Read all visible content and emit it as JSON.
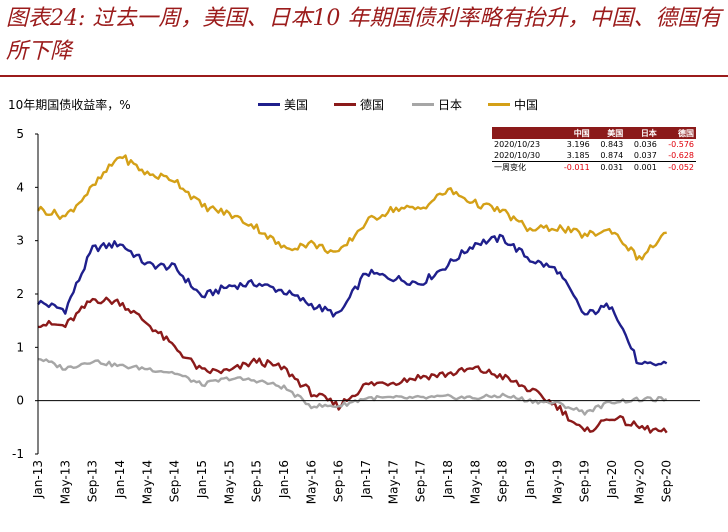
{
  "title": "图表24: 过去一周，美国、日本10 年期国债利率略有抬升，中国、德国有所下降",
  "chart_data": {
    "type": "line",
    "ylabel": "10年期国债收益率，%",
    "ylim": [
      -1,
      5
    ],
    "yticks": [
      -1,
      0,
      1,
      2,
      3,
      4,
      5
    ],
    "x_start": "Jan-13",
    "x_end": "Oct-20",
    "categories": [
      "Jan-13",
      "May-13",
      "Sep-13",
      "Jan-14",
      "May-14",
      "Sep-14",
      "Jan-15",
      "May-15",
      "Sep-15",
      "Jan-16",
      "May-16",
      "Sep-16",
      "Jan-17",
      "May-17",
      "Sep-17",
      "Jan-18",
      "May-18",
      "Sep-18",
      "Jan-19",
      "May-19",
      "Sep-19",
      "Jan-20",
      "May-20",
      "Sep-20"
    ],
    "series": [
      {
        "name": "美国",
        "color": "#1f1f8c",
        "values": [
          1.85,
          1.7,
          2.85,
          2.95,
          2.55,
          2.5,
          1.95,
          2.15,
          2.2,
          2.05,
          1.8,
          1.6,
          2.4,
          2.3,
          2.2,
          2.55,
          2.95,
          3.05,
          2.65,
          2.45,
          1.6,
          1.8,
          0.65,
          0.7
        ]
      },
      {
        "name": "德国",
        "color": "#8b1a1a",
        "values": [
          1.45,
          1.4,
          1.9,
          1.85,
          1.45,
          1.0,
          0.55,
          0.55,
          0.75,
          0.6,
          0.15,
          -0.1,
          0.3,
          0.35,
          0.45,
          0.5,
          0.6,
          0.45,
          0.2,
          -0.1,
          -0.6,
          -0.3,
          -0.5,
          -0.6
        ]
      },
      {
        "name": "日本",
        "color": "#a6a6a6",
        "values": [
          0.8,
          0.6,
          0.75,
          0.65,
          0.6,
          0.52,
          0.3,
          0.42,
          0.38,
          0.25,
          -0.1,
          -0.1,
          0.05,
          0.05,
          0.05,
          0.07,
          0.05,
          0.1,
          0.0,
          -0.05,
          -0.22,
          -0.02,
          0.02,
          0.03
        ]
      },
      {
        "name": "中国",
        "color": "#d4a017",
        "values": [
          3.6,
          3.45,
          4.0,
          4.6,
          4.25,
          4.15,
          3.65,
          3.5,
          3.25,
          2.85,
          2.95,
          2.75,
          3.35,
          3.6,
          3.6,
          3.95,
          3.7,
          3.55,
          3.2,
          3.25,
          3.1,
          3.2,
          2.65,
          3.15
        ]
      }
    ]
  },
  "summary_table": {
    "headers": [
      "",
      "中国",
      "美国",
      "日本",
      "德国"
    ],
    "rows": [
      [
        "2020/10/23",
        "3.196",
        "0.843",
        "0.036",
        "-0.576"
      ],
      [
        "2020/10/30",
        "3.185",
        "0.874",
        "0.037",
        "-0.628"
      ],
      [
        "一周变化",
        "-0.011",
        "0.031",
        "0.001",
        "-0.052"
      ]
    ]
  }
}
